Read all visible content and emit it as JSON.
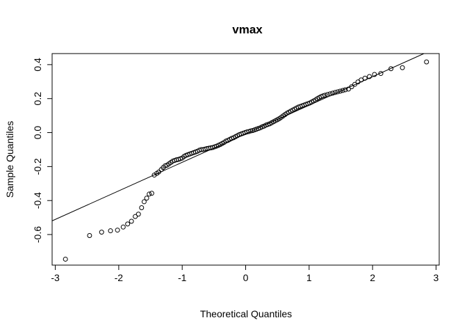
{
  "chart_data": {
    "type": "scatter",
    "title": "vmax",
    "xlabel": "Theoretical Quantiles",
    "ylabel": "Sample Quantiles",
    "xlim": [
      -3.05,
      3.05
    ],
    "ylim": [
      -0.78,
      0.465
    ],
    "x_ticks": [
      -3,
      -2,
      -1,
      0,
      1,
      2,
      3
    ],
    "x_tick_labels": [
      "-3",
      "-2",
      "-1",
      "0",
      "1",
      "2",
      "3"
    ],
    "y_ticks": [
      -0.6,
      -0.4,
      -0.2,
      0.0,
      0.2,
      0.4
    ],
    "y_tick_labels": [
      "-0.6",
      "-0.4",
      "-0.2",
      "0.0",
      "0.2",
      "0.4"
    ],
    "grid": false,
    "reference_line": {
      "slope": 0.168,
      "intercept": -0.007
    },
    "series": [
      {
        "points": [
          [
            -2.84,
            -0.745
          ],
          [
            -2.46,
            -0.606
          ],
          [
            -2.27,
            -0.586
          ],
          [
            -2.13,
            -0.578
          ],
          [
            -2.02,
            -0.574
          ],
          [
            -1.93,
            -0.556
          ],
          [
            -1.86,
            -0.538
          ],
          [
            -1.8,
            -0.522
          ],
          [
            -1.74,
            -0.494
          ],
          [
            -1.69,
            -0.48
          ],
          [
            -1.64,
            -0.442
          ],
          [
            -1.6,
            -0.407
          ],
          [
            -1.56,
            -0.386
          ],
          [
            -1.52,
            -0.362
          ],
          [
            -1.48,
            -0.357
          ],
          [
            -1.44,
            -0.25
          ],
          [
            -1.4,
            -0.24
          ],
          [
            -1.37,
            -0.232
          ],
          [
            -1.33,
            -0.218
          ],
          [
            -1.3,
            -0.206
          ],
          [
            -1.27,
            -0.196
          ],
          [
            -1.24,
            -0.192
          ],
          [
            -1.21,
            -0.184
          ],
          [
            -1.18,
            -0.176
          ],
          [
            -1.15,
            -0.168
          ],
          [
            -1.12,
            -0.164
          ],
          [
            -1.09,
            -0.16
          ],
          [
            -1.06,
            -0.158
          ],
          [
            -1.03,
            -0.154
          ],
          [
            -1.0,
            -0.15
          ],
          [
            -0.97,
            -0.14
          ],
          [
            -0.94,
            -0.134
          ],
          [
            -0.91,
            -0.13
          ],
          [
            -0.88,
            -0.126
          ],
          [
            -0.85,
            -0.122
          ],
          [
            -0.82,
            -0.118
          ],
          [
            -0.79,
            -0.114
          ],
          [
            -0.76,
            -0.11
          ],
          [
            -0.73,
            -0.104
          ],
          [
            -0.7,
            -0.1
          ],
          [
            -0.67,
            -0.1
          ],
          [
            -0.64,
            -0.097
          ],
          [
            -0.61,
            -0.094
          ],
          [
            -0.58,
            -0.092
          ],
          [
            -0.55,
            -0.09
          ],
          [
            -0.52,
            -0.088
          ],
          [
            -0.49,
            -0.084
          ],
          [
            -0.46,
            -0.08
          ],
          [
            -0.43,
            -0.075
          ],
          [
            -0.4,
            -0.07
          ],
          [
            -0.37,
            -0.064
          ],
          [
            -0.34,
            -0.058
          ],
          [
            -0.31,
            -0.05
          ],
          [
            -0.28,
            -0.046
          ],
          [
            -0.25,
            -0.04
          ],
          [
            -0.22,
            -0.034
          ],
          [
            -0.19,
            -0.03
          ],
          [
            -0.16,
            -0.024
          ],
          [
            -0.13,
            -0.018
          ],
          [
            -0.1,
            -0.012
          ],
          [
            -0.07,
            -0.008
          ],
          [
            -0.04,
            -0.004
          ],
          [
            -0.01,
            0.0
          ],
          [
            0.02,
            0.004
          ],
          [
            0.05,
            0.006
          ],
          [
            0.08,
            0.01
          ],
          [
            0.11,
            0.012
          ],
          [
            0.14,
            0.016
          ],
          [
            0.17,
            0.02
          ],
          [
            0.2,
            0.024
          ],
          [
            0.23,
            0.028
          ],
          [
            0.26,
            0.034
          ],
          [
            0.29,
            0.038
          ],
          [
            0.32,
            0.044
          ],
          [
            0.35,
            0.048
          ],
          [
            0.38,
            0.052
          ],
          [
            0.41,
            0.058
          ],
          [
            0.44,
            0.064
          ],
          [
            0.47,
            0.07
          ],
          [
            0.5,
            0.076
          ],
          [
            0.53,
            0.082
          ],
          [
            0.56,
            0.09
          ],
          [
            0.59,
            0.098
          ],
          [
            0.62,
            0.106
          ],
          [
            0.65,
            0.114
          ],
          [
            0.68,
            0.12
          ],
          [
            0.71,
            0.126
          ],
          [
            0.74,
            0.132
          ],
          [
            0.77,
            0.138
          ],
          [
            0.8,
            0.144
          ],
          [
            0.83,
            0.15
          ],
          [
            0.86,
            0.154
          ],
          [
            0.89,
            0.158
          ],
          [
            0.92,
            0.162
          ],
          [
            0.95,
            0.166
          ],
          [
            0.98,
            0.17
          ],
          [
            1.01,
            0.174
          ],
          [
            1.04,
            0.18
          ],
          [
            1.07,
            0.186
          ],
          [
            1.1,
            0.192
          ],
          [
            1.13,
            0.2
          ],
          [
            1.16,
            0.206
          ],
          [
            1.19,
            0.212
          ],
          [
            1.22,
            0.216
          ],
          [
            1.25,
            0.22
          ],
          [
            1.29,
            0.224
          ],
          [
            1.33,
            0.228
          ],
          [
            1.37,
            0.232
          ],
          [
            1.41,
            0.236
          ],
          [
            1.45,
            0.24
          ],
          [
            1.49,
            0.244
          ],
          [
            1.53,
            0.248
          ],
          [
            1.57,
            0.252
          ],
          [
            1.62,
            0.256
          ],
          [
            1.67,
            0.27
          ],
          [
            1.72,
            0.284
          ],
          [
            1.77,
            0.298
          ],
          [
            1.82,
            0.31
          ],
          [
            1.88,
            0.32
          ],
          [
            1.95,
            0.33
          ],
          [
            2.03,
            0.342
          ],
          [
            2.13,
            0.348
          ],
          [
            2.29,
            0.376
          ],
          [
            2.47,
            0.382
          ],
          [
            2.85,
            0.416
          ]
        ]
      }
    ]
  }
}
